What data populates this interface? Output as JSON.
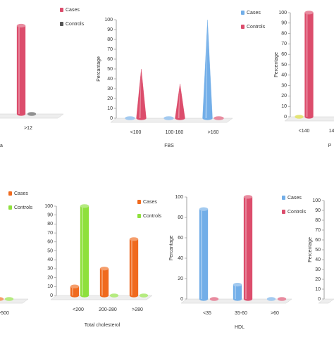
{
  "chart_data": [
    {
      "type": "bar",
      "bar_shape": "cylinder",
      "x_label": "a",
      "categories": [
        ">12"
      ],
      "series": [
        {
          "name": "Cases",
          "color": "#dc4d6c",
          "values": [
            95
          ]
        },
        {
          "name": "Controls",
          "color": "#555555",
          "values": [
            0
          ]
        }
      ],
      "ylim": [
        0,
        100
      ]
    },
    {
      "type": "bar",
      "bar_shape": "cone",
      "x_label": "FBS",
      "y_label": "Percantage",
      "categories": [
        "<100",
        "100-160",
        ">160"
      ],
      "series": [
        {
          "name": "Cases",
          "color": "#72aee8",
          "values": [
            0,
            0,
            100
          ]
        },
        {
          "name": "Controls",
          "color": "#dc4d6c",
          "values": [
            50,
            35,
            0
          ]
        }
      ],
      "ylim": [
        0,
        100
      ],
      "yticks": [
        0,
        10,
        20,
        30,
        40,
        50,
        60,
        70,
        80,
        90,
        100
      ]
    },
    {
      "type": "bar",
      "bar_shape": "cylinder",
      "x_label": "P",
      "y_label": "Percentage",
      "categories": [
        "<140",
        "14"
      ],
      "series": [
        {
          "color": "#d6d62c",
          "values": [
            0,
            null
          ]
        },
        {
          "color": "#dc4d6c",
          "values": [
            100,
            null
          ]
        }
      ],
      "ylim": [
        0,
        100
      ],
      "yticks": [
        0,
        10,
        20,
        30,
        40,
        50,
        60,
        70,
        80,
        90,
        100
      ]
    },
    {
      "type": "bar",
      "bar_shape": "cylinder",
      "categories": [
        ">500"
      ],
      "series": [
        {
          "name": "Cases",
          "color": "#f06a1e",
          "values": [
            0
          ]
        },
        {
          "name": "Controls",
          "color": "#8ee03c",
          "values": [
            0
          ]
        }
      ],
      "ylim": [
        0,
        100
      ]
    },
    {
      "type": "bar",
      "bar_shape": "cylinder",
      "x_label": "Total cholesterol",
      "categories": [
        "<200",
        "200-280",
        ">280"
      ],
      "series": [
        {
          "name": "Cases",
          "color": "#f06a1e",
          "values": [
            10,
            30,
            63
          ]
        },
        {
          "name": "Controls",
          "color": "#8ee03c",
          "values": [
            100,
            0,
            0
          ]
        }
      ],
      "ylim": [
        0,
        100
      ],
      "yticks": [
        0,
        10,
        20,
        30,
        40,
        50,
        60,
        70,
        80,
        90,
        100
      ]
    },
    {
      "type": "bar",
      "bar_shape": "cylinder",
      "x_label": "HDL",
      "y_label": "Percantage",
      "categories": [
        "<35",
        "35-60",
        ">60"
      ],
      "series": [
        {
          "name": "Cases",
          "color": "#72aee8",
          "values": [
            88,
            14,
            0
          ]
        },
        {
          "name": "Controls",
          "color": "#dc4d6c",
          "values": [
            0,
            100,
            0
          ]
        }
      ],
      "ylim": [
        0,
        100
      ],
      "yticks": [
        0,
        20,
        40,
        60,
        80,
        100
      ]
    },
    {
      "type": "bar",
      "y_label": "Percentage",
      "ylim": [
        0,
        100
      ],
      "yticks": [
        0,
        10,
        20,
        30,
        40,
        50,
        60,
        70,
        80,
        90,
        100
      ]
    }
  ]
}
